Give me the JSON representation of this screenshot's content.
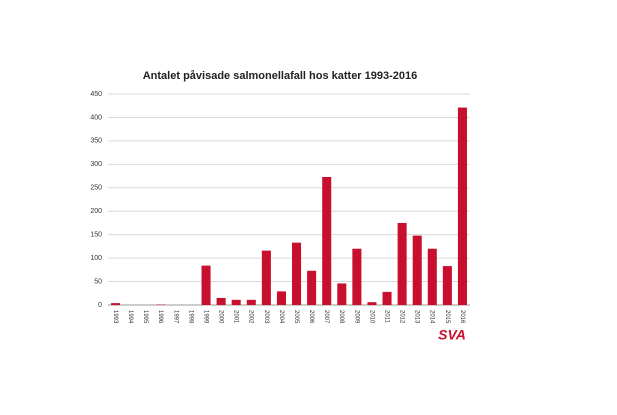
{
  "chart_data": {
    "type": "bar",
    "title": "Antalet påvisade salmonellafall hos katter 1993-2016",
    "categories": [
      "1993",
      "1994",
      "1995",
      "1996",
      "1997",
      "1998",
      "1999",
      "2000",
      "2001",
      "2002",
      "2003",
      "2004",
      "2005",
      "2006",
      "2007",
      "2008",
      "2009",
      "2010",
      "2011",
      "2012",
      "2013",
      "2014",
      "2015",
      "2016"
    ],
    "values": [
      4,
      0,
      0,
      1,
      0,
      0,
      84,
      15,
      11,
      11,
      116,
      29,
      133,
      73,
      273,
      46,
      120,
      6,
      28,
      175,
      148,
      120,
      83,
      421
    ],
    "color": "#c8102e",
    "ylim": [
      0,
      450
    ],
    "yticks": [
      0,
      50,
      100,
      150,
      200,
      250,
      300,
      350,
      400,
      450
    ],
    "grid": true,
    "logo": "SVA"
  }
}
